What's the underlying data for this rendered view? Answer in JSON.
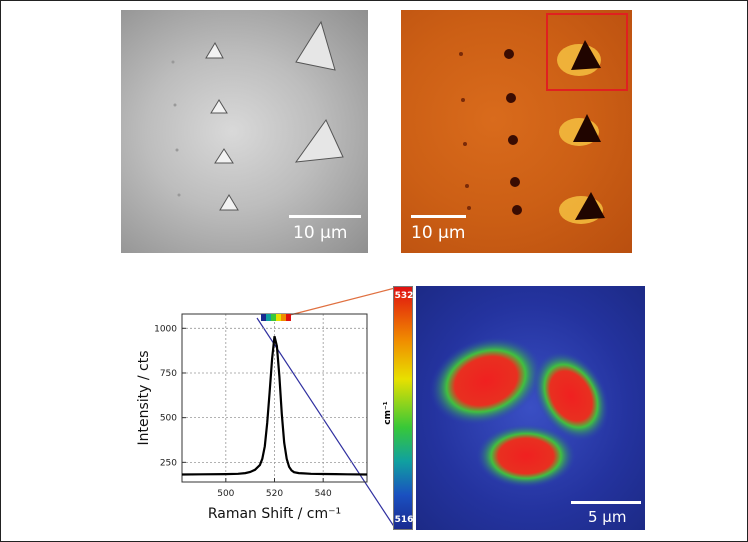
{
  "panels": {
    "optical": {
      "scalebar_label": "10 µm"
    },
    "afm": {
      "scalebar_label": "10 µm"
    },
    "raman_map": {
      "scalebar_label": "5 µm",
      "colorbar": {
        "max_label": "532",
        "min_label": "516",
        "unit": "cm⁻¹",
        "max_color": "#e01010",
        "min_color": "#1a2a90"
      }
    }
  },
  "chart_data": {
    "type": "line",
    "xlabel": "Raman Shift / cm⁻¹",
    "ylabel": "Intensity / cts",
    "xlim": [
      482,
      558
    ],
    "ylim": [
      140,
      1080
    ],
    "x_ticks": [
      500,
      520,
      540
    ],
    "y_ticks": [
      250,
      500,
      750,
      1000
    ],
    "grid": true,
    "series": [
      {
        "color": "#000000",
        "x": [
          482,
          490,
          500,
          505,
          508,
          510,
          512,
          514,
          515,
          516,
          517,
          518,
          519,
          520,
          521,
          522,
          523,
          524,
          525,
          526,
          527,
          528,
          530,
          532,
          535,
          540,
          545,
          550,
          558
        ],
        "y": [
          182,
          183,
          184,
          186,
          190,
          196,
          208,
          235,
          270,
          340,
          470,
          640,
          830,
          955,
          900,
          730,
          520,
          360,
          270,
          225,
          205,
          195,
          190,
          188,
          186,
          185,
          184,
          183,
          182
        ]
      }
    ]
  }
}
